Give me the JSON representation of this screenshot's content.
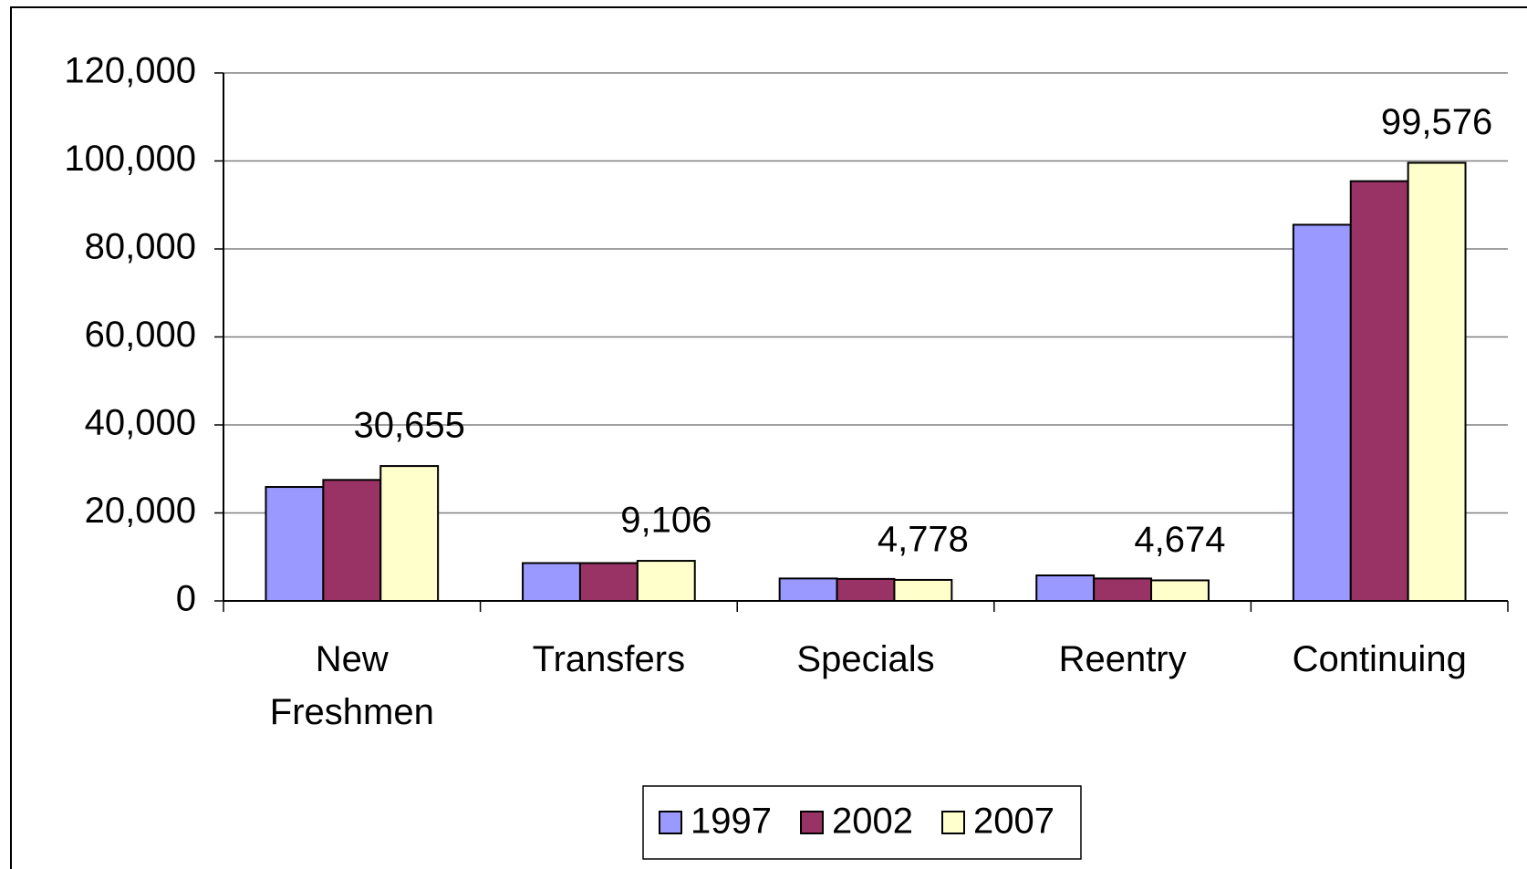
{
  "chart_data": {
    "type": "bar",
    "categories": [
      "New Freshmen",
      "Transfers",
      "Specials",
      "Reentry",
      "Continuing"
    ],
    "series": [
      {
        "name": "1997",
        "color": "#9999ff",
        "values": [
          25900,
          8600,
          5100,
          5800,
          85500
        ]
      },
      {
        "name": "2002",
        "color": "#993366",
        "values": [
          27500,
          8600,
          5000,
          5100,
          95400
        ]
      },
      {
        "name": "2007",
        "color": "#ffffcc",
        "values": [
          30655,
          9106,
          4778,
          4674,
          99576
        ],
        "value_labels": [
          "30,655",
          "9,106",
          "4,778",
          "4,674",
          "99,576"
        ]
      }
    ],
    "ylim": [
      0,
      120000
    ],
    "yticks": [
      0,
      {
        "value": 20000,
        "label": "20,000"
      },
      {
        "value": 40000,
        "label": "40,000"
      },
      {
        "value": 60000,
        "label": "60,000"
      },
      {
        "value": 80000,
        "label": "80,000"
      },
      {
        "value": 100000,
        "label": "100,000"
      },
      {
        "value": 120000,
        "label": "120,000"
      }
    ],
    "grid": true,
    "legend": "bottom"
  }
}
